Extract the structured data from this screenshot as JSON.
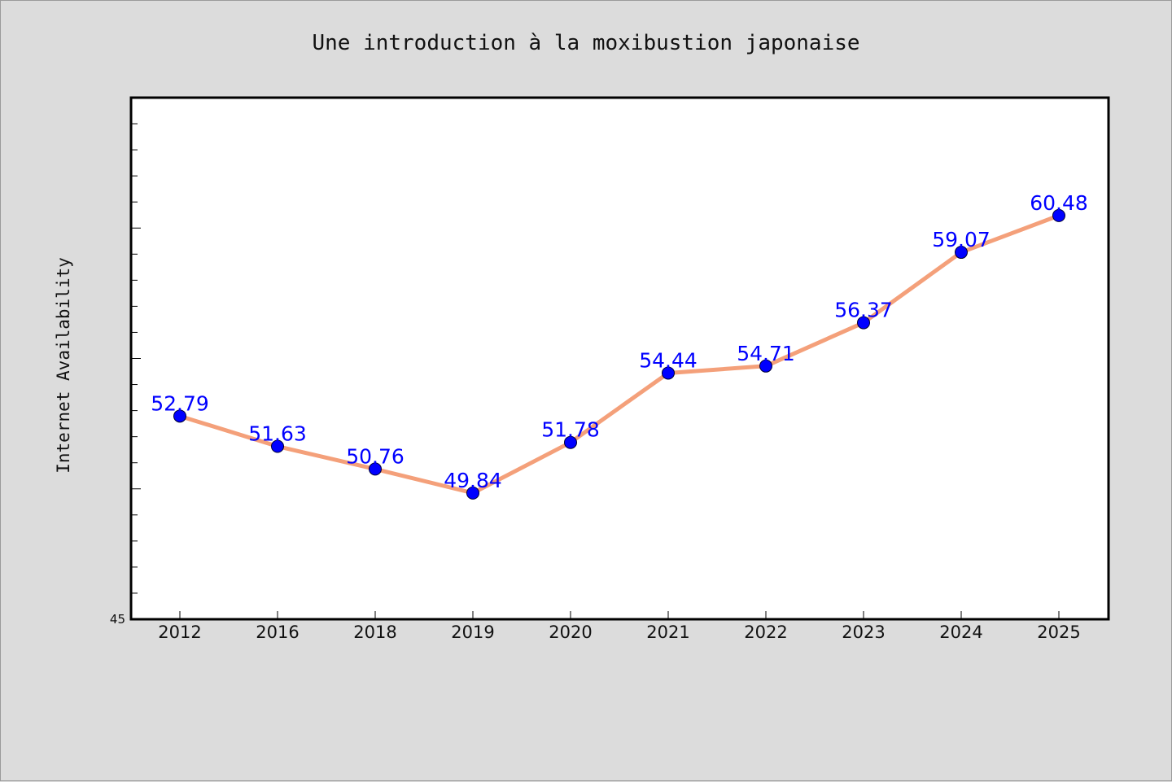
{
  "chart_data": {
    "type": "line",
    "title": "Une introduction à la moxibustion japonaise",
    "xlabel": "",
    "ylabel": "Internet Availability",
    "ylim": [
      45,
      65
    ],
    "ytick_labels": [
      "45"
    ],
    "grid": false,
    "categories": [
      "2012",
      "2016",
      "2018",
      "2019",
      "2020",
      "2021",
      "2022",
      "2023",
      "2024",
      "2025"
    ],
    "series": [
      {
        "values": [
          52.79,
          51.63,
          50.76,
          49.84,
          51.78,
          54.44,
          54.71,
          56.37,
          59.07,
          60.48
        ],
        "data_labels": [
          "52.79",
          "51.63",
          "50.76",
          "49.84",
          "51.78",
          "54.44",
          "54.71",
          "56.37",
          "59.07",
          "60.48"
        ]
      }
    ],
    "colors": {
      "line": "#f4a07a",
      "marker": "#0000ff",
      "data_label": "#0000ff",
      "plot_bg": "#ffffff",
      "page_bg": "#dcdcdc"
    }
  }
}
